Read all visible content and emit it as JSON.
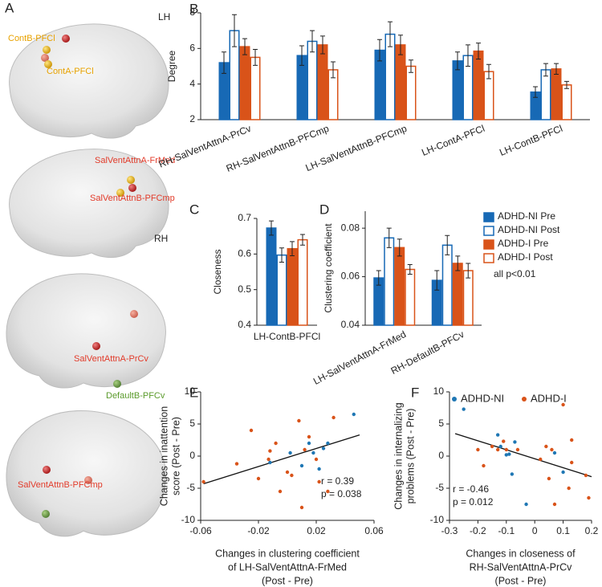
{
  "panel_a": {
    "letter": "A",
    "views": [
      {
        "hemisphere": "LH",
        "labels": [
          "ContB-PFCl",
          "ContA-PFCl"
        ]
      },
      {
        "labels": [
          "SalVentAttnA-FrMed",
          "SalVentAttnB-PFCmp"
        ]
      },
      {
        "hemisphere": "RH",
        "labels": [
          "SalVentAttnA-PrCv",
          "DefaultB-PFCv"
        ]
      },
      {
        "labels": [
          "SalVentAttnB-PFCmp"
        ]
      }
    ]
  },
  "chart_data": [
    {
      "type": "bar",
      "panel": "B",
      "ylabel": "Degree",
      "categories": [
        "RH-SalVentAttnA-PrCv",
        "RH-SalVentAttnB-PFCmp",
        "LH-SalVentAttnB-PFCmp",
        "LH-ContA-PFCl",
        "LH-ContB-PFCl"
      ],
      "series": [
        {
          "color": "#1769b5",
          "filled": true,
          "values": [
            5.2,
            5.6,
            5.9,
            5.3,
            3.55
          ],
          "errors": [
            0.6,
            0.55,
            0.6,
            0.5,
            0.3
          ]
        },
        {
          "color": "#1769b5",
          "filled": false,
          "values": [
            7.0,
            6.4,
            6.8,
            5.6,
            4.8
          ],
          "errors": [
            0.9,
            0.6,
            0.7,
            0.6,
            0.35
          ]
        },
        {
          "color": "#d95319",
          "filled": true,
          "values": [
            6.1,
            6.2,
            6.2,
            5.85,
            4.85
          ],
          "errors": [
            0.45,
            0.5,
            0.55,
            0.45,
            0.3
          ]
        },
        {
          "color": "#d95319",
          "filled": false,
          "values": [
            5.5,
            4.8,
            5.0,
            4.7,
            3.95
          ],
          "errors": [
            0.45,
            0.45,
            0.35,
            0.4,
            0.2
          ]
        }
      ],
      "ylim": [
        2,
        8
      ],
      "yticks": [
        2,
        4,
        6,
        8
      ]
    },
    {
      "type": "bar",
      "panel": "C",
      "ylabel": "Closeness",
      "categories": [
        "LH-ContB-PFCl"
      ],
      "series": [
        {
          "color": "#1769b5",
          "filled": true,
          "values": [
            0.673
          ],
          "errors": [
            0.02
          ]
        },
        {
          "color": "#1769b5",
          "filled": false,
          "values": [
            0.597
          ],
          "errors": [
            0.02
          ]
        },
        {
          "color": "#d95319",
          "filled": true,
          "values": [
            0.615
          ],
          "errors": [
            0.02
          ]
        },
        {
          "color": "#d95319",
          "filled": false,
          "values": [
            0.64
          ],
          "errors": [
            0.015
          ]
        }
      ],
      "ylim": [
        0.4,
        0.7
      ],
      "yticks": [
        0.4,
        0.5,
        0.6,
        0.7
      ]
    },
    {
      "type": "bar",
      "panel": "D",
      "ylabel": "Clustering coefficient",
      "categories": [
        "LH-SalVentAttnA-FrMed",
        "RH-DefaultB-PFCv"
      ],
      "series": [
        {
          "name": "ADHD-NI Pre",
          "color": "#1769b5",
          "filled": true,
          "values": [
            0.0595,
            0.0585
          ],
          "errors": [
            0.003,
            0.004
          ]
        },
        {
          "name": "ADHD-NI Post",
          "color": "#1769b5",
          "filled": false,
          "values": [
            0.076,
            0.073
          ],
          "errors": [
            0.004,
            0.004
          ]
        },
        {
          "name": "ADHD-I Pre",
          "color": "#d95319",
          "filled": true,
          "values": [
            0.072,
            0.0655
          ],
          "errors": [
            0.0035,
            0.003
          ]
        },
        {
          "name": "ADHD-I Post",
          "color": "#d95319",
          "filled": false,
          "values": [
            0.063,
            0.0625
          ],
          "errors": [
            0.002,
            0.003
          ]
        }
      ],
      "annotation": "all p<0.01",
      "ylim": [
        0.04,
        0.087
      ],
      "yticks": [
        0.04,
        0.06,
        0.08
      ]
    },
    {
      "type": "scatter",
      "panel": "E",
      "xlabel": [
        "Changes in clustering coefficient",
        "of LH-SalVentAttnA-FrMed",
        "(Post - Pre)"
      ],
      "ylabel": [
        "Changes in inattention",
        "score (Post - Pre)"
      ],
      "series": [
        {
          "color": "#1f77b4",
          "x": [
            0.01,
            0.015,
            0.018,
            0.022,
            0.025,
            0.028,
            0.046,
            0.002,
            -0.012
          ],
          "values": [
            -1.5,
            2.0,
            0.5,
            -2.0,
            1.2,
            2.0,
            6.5,
            0.5,
            -1.0
          ]
        },
        {
          "color": "#d95319",
          "x": [
            -0.058,
            -0.035,
            -0.025,
            -0.013,
            -0.012,
            -0.008,
            -0.02,
            0.0,
            0.003,
            0.008,
            0.01,
            0.012,
            0.02,
            0.022,
            0.028,
            0.032,
            -0.005,
            0.015
          ],
          "values": [
            -4.0,
            -1.2,
            4.0,
            -0.5,
            0.8,
            2.0,
            -3.5,
            -2.5,
            -3.0,
            5.5,
            -8.0,
            1.0,
            -0.5,
            -4.0,
            -5.5,
            6.0,
            -5.5,
            3.0
          ]
        }
      ],
      "fit_line": {
        "x": [
          -0.058,
          0.05
        ],
        "y": [
          -4.3,
          3.3
        ]
      },
      "annotations": [
        "r = 0.39",
        "p = 0.038"
      ],
      "xlim": [
        -0.06,
        0.06
      ],
      "xticks": [
        -0.06,
        -0.02,
        0.02,
        0.06
      ],
      "ylim": [
        -10,
        10
      ],
      "yticks": [
        -10,
        -5,
        0,
        5,
        10
      ]
    },
    {
      "type": "scatter",
      "panel": "F",
      "xlabel": [
        "Changes in closeness of",
        "RH-SalVentAttnA-PrCv",
        "(Post - Pre)"
      ],
      "ylabel": [
        "Changes in internalizing",
        "problems (Post - Pre)"
      ],
      "series": [
        {
          "name": "ADHD-NI",
          "color": "#1f77b4",
          "x": [
            -0.25,
            -0.13,
            -0.12,
            -0.1,
            -0.09,
            -0.08,
            -0.07,
            -0.03,
            0.07,
            0.1
          ],
          "values": [
            7.3,
            3.3,
            1.5,
            0.2,
            0.3,
            -2.8,
            2.2,
            -7.5,
            0.5,
            -2.5
          ]
        },
        {
          "name": "ADHD-I",
          "color": "#d95319",
          "x": [
            -0.2,
            -0.18,
            -0.15,
            -0.13,
            -0.11,
            -0.1,
            -0.06,
            0.02,
            0.04,
            0.05,
            0.06,
            0.07,
            0.1,
            0.12,
            0.13,
            0.13,
            0.18,
            0.19
          ],
          "values": [
            1.0,
            -1.5,
            1.5,
            1.0,
            2.3,
            1.0,
            1.0,
            -0.5,
            1.5,
            -3.5,
            1.0,
            -7.5,
            8.0,
            -5.0,
            -1.0,
            2.5,
            -3.0,
            -6.5
          ]
        }
      ],
      "fit_line": {
        "x": [
          -0.28,
          0.2
        ],
        "y": [
          3.5,
          -3.2
        ]
      },
      "annotations": [
        "r = -0.46",
        "p = 0.012"
      ],
      "xlim": [
        -0.3,
        0.2
      ],
      "xticks": [
        -0.3,
        -0.2,
        -0.1,
        0,
        0.1,
        0.2
      ],
      "ylim": [
        -10,
        10
      ],
      "yticks": [
        -10,
        -5,
        0,
        5,
        10
      ]
    }
  ]
}
